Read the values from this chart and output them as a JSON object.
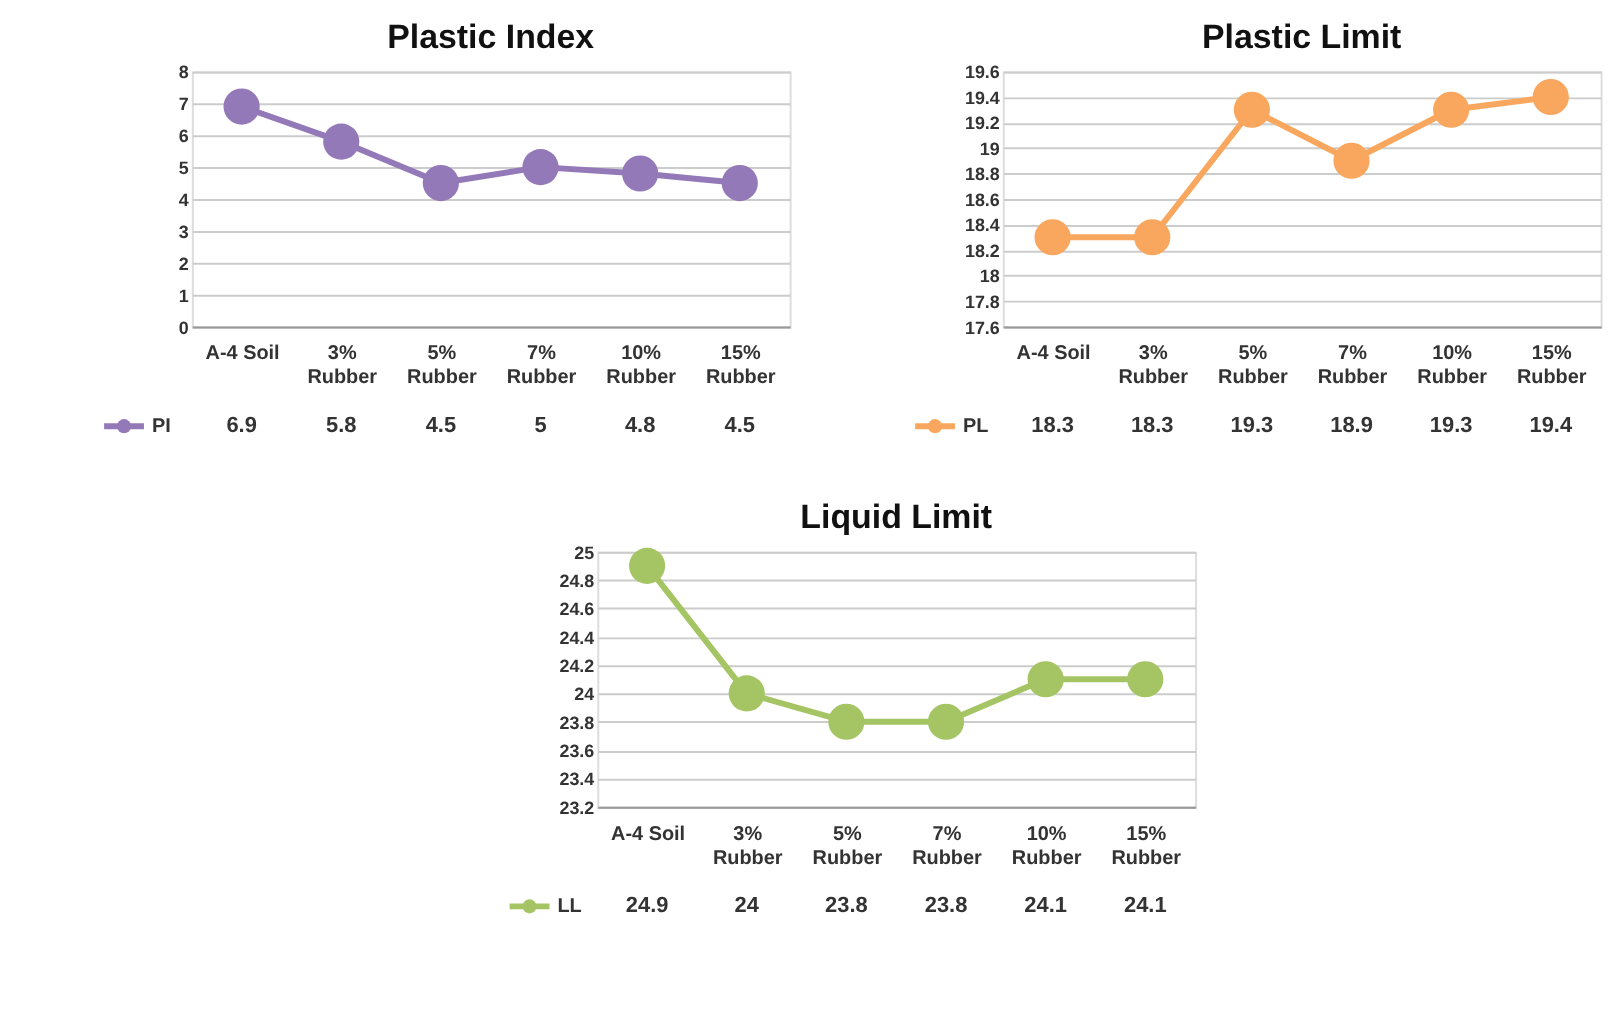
{
  "chart_data": [
    {
      "type": "line",
      "title": "Plastic Index",
      "categories": [
        "A-4 Soil",
        "3% Rubber",
        "5% Rubber",
        "7% Rubber",
        "10% Rubber",
        "15% Rubber"
      ],
      "series": [
        {
          "name": "PI",
          "color": "#9479b8",
          "values": [
            6.9,
            5.8,
            4.5,
            5,
            4.8,
            4.5
          ]
        }
      ],
      "ylim": [
        0,
        8
      ],
      "yticks": [
        0,
        1,
        2,
        3,
        4,
        5,
        6,
        7,
        8
      ],
      "grid": "y",
      "marker": "circle",
      "line_style": "solid",
      "data_labels": true,
      "legend": "bottom"
    },
    {
      "type": "line",
      "title": "Plastic Limit",
      "categories": [
        "A-4 Soil",
        "3% Rubber",
        "5% Rubber",
        "7% Rubber",
        "10% Rubber",
        "15% Rubber"
      ],
      "series": [
        {
          "name": "PL",
          "color": "#f9a75e",
          "values": [
            18.3,
            18.3,
            19.3,
            18.9,
            19.3,
            19.4
          ]
        }
      ],
      "ylim": [
        17.6,
        19.6
      ],
      "yticks": [
        17.6,
        17.8,
        18,
        18.2,
        18.4,
        18.6,
        18.8,
        19,
        19.2,
        19.4,
        19.6
      ],
      "grid": "y",
      "marker": "circle",
      "line_style": "solid",
      "data_labels": true,
      "legend": "bottom"
    },
    {
      "type": "line",
      "title": "Liquid Limit",
      "categories": [
        "A-4 Soil",
        "3% Rubber",
        "5% Rubber",
        "7% Rubber",
        "10% Rubber",
        "15% Rubber"
      ],
      "series": [
        {
          "name": "LL",
          "color": "#a5c565",
          "values": [
            24.9,
            24,
            23.8,
            23.8,
            24.1,
            24.1
          ]
        }
      ],
      "ylim": [
        23.2,
        25
      ],
      "yticks": [
        23.2,
        23.4,
        23.6,
        23.8,
        24,
        24.2,
        24.4,
        24.6,
        24.8,
        25
      ],
      "grid": "y",
      "marker": "circle",
      "line_style": "solid",
      "data_labels": true,
      "legend": "bottom"
    }
  ]
}
